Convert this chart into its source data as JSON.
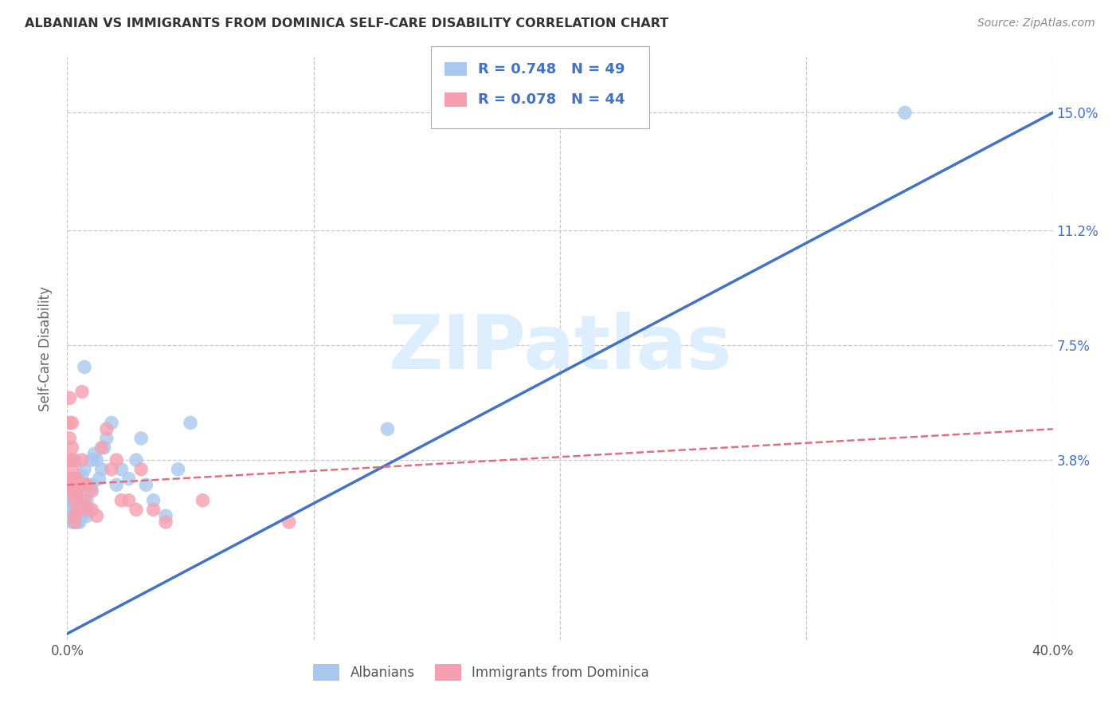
{
  "title": "ALBANIAN VS IMMIGRANTS FROM DOMINICA SELF-CARE DISABILITY CORRELATION CHART",
  "source": "Source: ZipAtlas.com",
  "ylabel": "Self-Care Disability",
  "xlim": [
    0.0,
    0.4
  ],
  "ylim": [
    -0.02,
    0.168
  ],
  "ytick_positions": [
    0.038,
    0.075,
    0.112,
    0.15
  ],
  "ytick_labels": [
    "3.8%",
    "7.5%",
    "11.2%",
    "15.0%"
  ],
  "background_color": "#ffffff",
  "grid_color": "#c8c8c8",
  "albanian_color": "#a8c8ee",
  "albanian_line_color": "#4472c4",
  "dominica_color": "#f4a0b0",
  "dominica_line_color": "#e07080",
  "watermark_text": "ZIPatlas",
  "watermark_color": "#ddeeff",
  "legend_label1": "Albanians",
  "legend_label2": "Immigrants from Dominica",
  "blue_line": [
    0.0,
    -0.018,
    0.4,
    0.15
  ],
  "pink_line": [
    0.0,
    0.03,
    0.4,
    0.048
  ],
  "albanian_x": [
    0.001,
    0.001,
    0.002,
    0.002,
    0.002,
    0.003,
    0.003,
    0.003,
    0.003,
    0.003,
    0.004,
    0.004,
    0.004,
    0.004,
    0.005,
    0.005,
    0.005,
    0.005,
    0.006,
    0.006,
    0.006,
    0.007,
    0.007,
    0.008,
    0.008,
    0.008,
    0.009,
    0.009,
    0.01,
    0.01,
    0.011,
    0.012,
    0.013,
    0.014,
    0.015,
    0.016,
    0.018,
    0.02,
    0.022,
    0.025,
    0.028,
    0.03,
    0.032,
    0.035,
    0.04,
    0.045,
    0.05,
    0.13,
    0.34
  ],
  "albanian_y": [
    0.028,
    0.022,
    0.032,
    0.025,
    0.018,
    0.03,
    0.028,
    0.022,
    0.018,
    0.024,
    0.025,
    0.022,
    0.028,
    0.018,
    0.03,
    0.025,
    0.02,
    0.018,
    0.033,
    0.025,
    0.02,
    0.068,
    0.035,
    0.03,
    0.025,
    0.02,
    0.028,
    0.022,
    0.038,
    0.03,
    0.04,
    0.038,
    0.032,
    0.035,
    0.042,
    0.045,
    0.05,
    0.03,
    0.035,
    0.032,
    0.038,
    0.045,
    0.03,
    0.025,
    0.02,
    0.035,
    0.05,
    0.048,
    0.15
  ],
  "dominica_x": [
    0.001,
    0.001,
    0.001,
    0.001,
    0.001,
    0.002,
    0.002,
    0.002,
    0.002,
    0.002,
    0.002,
    0.002,
    0.003,
    0.003,
    0.003,
    0.003,
    0.003,
    0.003,
    0.004,
    0.004,
    0.004,
    0.005,
    0.005,
    0.006,
    0.006,
    0.007,
    0.007,
    0.008,
    0.008,
    0.01,
    0.01,
    0.012,
    0.014,
    0.016,
    0.018,
    0.02,
    0.022,
    0.025,
    0.028,
    0.03,
    0.035,
    0.04,
    0.055,
    0.09
  ],
  "dominica_y": [
    0.058,
    0.05,
    0.045,
    0.038,
    0.032,
    0.05,
    0.042,
    0.038,
    0.032,
    0.028,
    0.035,
    0.028,
    0.038,
    0.032,
    0.028,
    0.025,
    0.02,
    0.018,
    0.032,
    0.028,
    0.022,
    0.03,
    0.025,
    0.06,
    0.038,
    0.03,
    0.025,
    0.03,
    0.022,
    0.028,
    0.022,
    0.02,
    0.042,
    0.048,
    0.035,
    0.038,
    0.025,
    0.025,
    0.022,
    0.035,
    0.022,
    0.018,
    0.025,
    0.018
  ]
}
